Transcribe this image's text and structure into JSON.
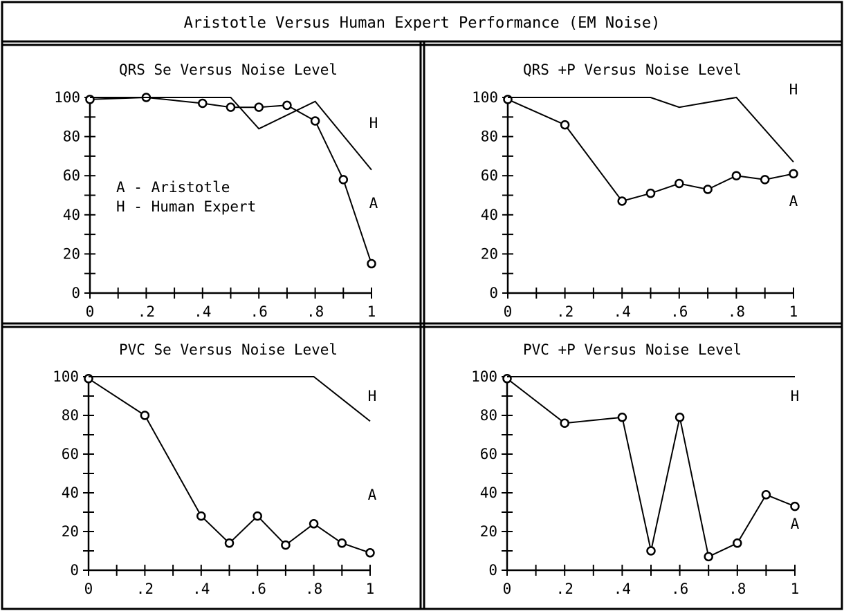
{
  "figure": {
    "title": "Aristotle Versus Human Expert Performance (EM Noise)"
  },
  "legend": {
    "entries": [
      "A - Aristotle",
      "H - Human Expert"
    ]
  },
  "chart_data": [
    {
      "type": "line",
      "title": "QRS Se Versus Noise Level",
      "xlabel": "",
      "ylabel": "",
      "xlim": [
        0,
        1
      ],
      "ylim": [
        0,
        100
      ],
      "x_ticks": [
        "0",
        ".2",
        ".4",
        ".6",
        ".8",
        "1"
      ],
      "y_ticks": [
        "0",
        "20",
        "40",
        "60",
        "80",
        "100"
      ],
      "series": [
        {
          "name": "A",
          "marker": true,
          "x": [
            0,
            0.2,
            0.4,
            0.5,
            0.6,
            0.7,
            0.8,
            0.9,
            1.0
          ],
          "y": [
            99,
            100,
            97,
            95,
            95,
            96,
            88,
            58,
            15
          ]
        },
        {
          "name": "H",
          "marker": false,
          "x": [
            0,
            0.5,
            0.6,
            0.8,
            1.0
          ],
          "y": [
            100,
            100,
            84,
            98,
            63
          ]
        }
      ],
      "series_label_pos": {
        "H": 87,
        "A": 46
      }
    },
    {
      "type": "line",
      "title": "QRS +P Versus Noise Level",
      "xlabel": "",
      "ylabel": "",
      "xlim": [
        0,
        1
      ],
      "ylim": [
        0,
        100
      ],
      "x_ticks": [
        "0",
        ".2",
        ".4",
        ".6",
        ".8",
        "1"
      ],
      "y_ticks": [
        "0",
        "20",
        "40",
        "60",
        "80",
        "100"
      ],
      "series": [
        {
          "name": "A",
          "marker": true,
          "x": [
            0,
            0.2,
            0.4,
            0.5,
            0.6,
            0.7,
            0.8,
            0.9,
            1.0
          ],
          "y": [
            99,
            86,
            47,
            51,
            56,
            53,
            60,
            58,
            61
          ]
        },
        {
          "name": "H",
          "marker": false,
          "x": [
            0,
            0.5,
            0.6,
            0.8,
            1.0
          ],
          "y": [
            100,
            100,
            95,
            100,
            67
          ]
        }
      ],
      "series_label_pos": {
        "H": 104,
        "A": 47
      }
    },
    {
      "type": "line",
      "title": "PVC Se Versus Noise Level",
      "xlabel": "",
      "ylabel": "",
      "xlim": [
        0,
        1
      ],
      "ylim": [
        0,
        100
      ],
      "x_ticks": [
        "0",
        ".2",
        ".4",
        ".6",
        ".8",
        "1"
      ],
      "y_ticks": [
        "0",
        "20",
        "40",
        "60",
        "80",
        "100"
      ],
      "series": [
        {
          "name": "A",
          "marker": true,
          "x": [
            0,
            0.2,
            0.4,
            0.5,
            0.6,
            0.7,
            0.8,
            0.9,
            1.0
          ],
          "y": [
            99,
            80,
            28,
            14,
            28,
            13,
            24,
            14,
            9
          ]
        },
        {
          "name": "H",
          "marker": false,
          "x": [
            0,
            0.8,
            1.0
          ],
          "y": [
            100,
            100,
            77
          ]
        }
      ],
      "series_label_pos": {
        "H": 90,
        "A": 39
      }
    },
    {
      "type": "line",
      "title": "PVC +P Versus Noise Level",
      "xlabel": "",
      "ylabel": "",
      "xlim": [
        0,
        1
      ],
      "ylim": [
        0,
        100
      ],
      "x_ticks": [
        "0",
        ".2",
        ".4",
        ".6",
        ".8",
        "1"
      ],
      "y_ticks": [
        "0",
        "20",
        "40",
        "60",
        "80",
        "100"
      ],
      "series": [
        {
          "name": "A",
          "marker": true,
          "x": [
            0,
            0.2,
            0.4,
            0.5,
            0.6,
            0.7,
            0.8,
            0.9,
            1.0
          ],
          "y": [
            99,
            76,
            79,
            10,
            79,
            7,
            14,
            39,
            33
          ]
        },
        {
          "name": "H",
          "marker": false,
          "x": [
            0,
            1.0
          ],
          "y": [
            100,
            100
          ]
        }
      ],
      "series_label_pos": {
        "H": 90,
        "A": 24
      }
    }
  ]
}
